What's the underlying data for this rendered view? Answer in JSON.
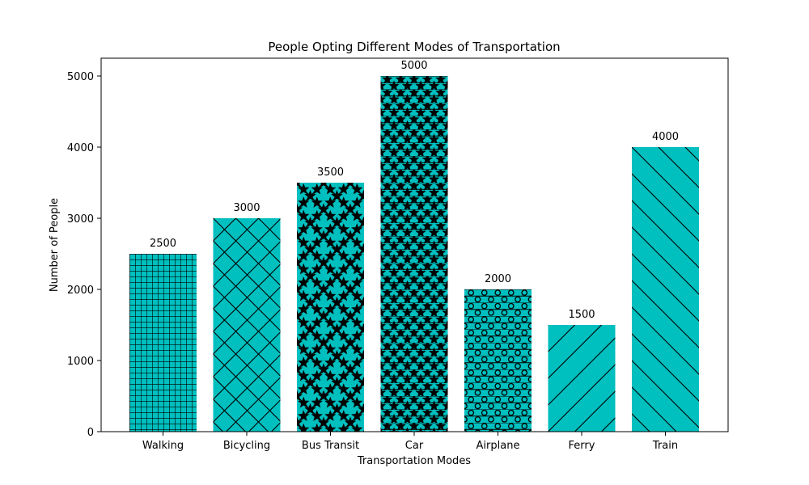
{
  "chart_data": {
    "type": "bar",
    "title": "People Opting Different Modes of Transportation",
    "xlabel": "Transportation Modes",
    "ylabel": "Number of People",
    "categories": [
      "Walking",
      "Bicycling",
      "Bus Transit",
      "Car",
      "Airplane",
      "Ferry",
      "Train"
    ],
    "values": [
      2500,
      3000,
      3500,
      5000,
      2000,
      1500,
      4000
    ],
    "hatches": [
      "grid",
      "diagonal-cross",
      "stars-cross",
      "stars-hlines",
      "circles-hlines",
      "forward-diagonal",
      "back-diagonal"
    ],
    "ylim": [
      0,
      5250
    ],
    "yticks": [
      0,
      1000,
      2000,
      3000,
      4000,
      5000
    ],
    "grid": false,
    "bar_color": "#00BFBF",
    "hatch_color": "#000000"
  }
}
